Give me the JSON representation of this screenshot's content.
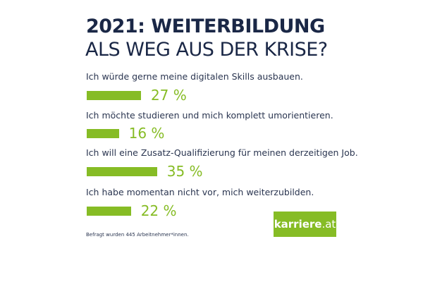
{
  "chart_data": {
    "type": "bar",
    "orientation": "horizontal",
    "title_line1": "2021: WEITERBILDUNG",
    "title_line2": "ALS WEG AUS DER KRISE?",
    "categories": [
      "Ich würde gerne meine digitalen Skills ausbauen.",
      "Ich möchte studieren und mich komplett umorientieren.",
      "Ich will eine Zusatz-Qualifizierung für meinen derzeitigen Job.",
      "Ich habe momentan nicht vor, mich weiterzubilden."
    ],
    "values": [
      27,
      16,
      35,
      22
    ],
    "value_labels": [
      "27 %",
      "16 %",
      "35 %",
      "22 %"
    ],
    "unit": "%",
    "footnote": "Befragt wurden 445 Arbeitnehmer*innen."
  },
  "logo": {
    "name": "karriere",
    "tld": ".at"
  },
  "colors": {
    "title": "#1a2746",
    "bar": "#86bc25"
  }
}
